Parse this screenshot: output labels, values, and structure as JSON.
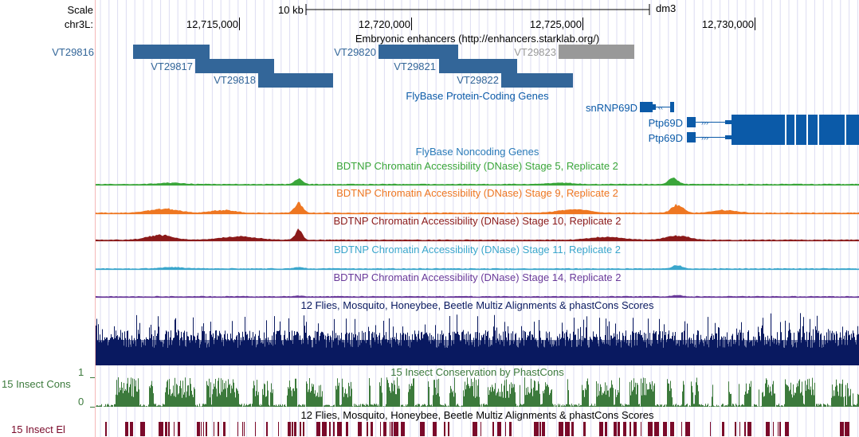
{
  "ruler": {
    "scale_label": "Scale",
    "scale_bar_label": "10 kb",
    "assembly": "dm3",
    "chrom_label": "chr3L:",
    "positions": [
      "12,715,000",
      "12,720,000",
      "12,725,000",
      "12,730,000"
    ]
  },
  "tracks": {
    "enhancers": {
      "title": "Embryonic enhancers (http://enhancers.starklab.org/)",
      "color": "#336699",
      "grey_color": "#999999",
      "items": [
        {
          "name": "VT29816"
        },
        {
          "name": "VT29817"
        },
        {
          "name": "VT29818"
        },
        {
          "name": "VT29820"
        },
        {
          "name": "VT29821"
        },
        {
          "name": "VT29822"
        },
        {
          "name": "VT29823"
        }
      ]
    },
    "coding_genes": {
      "title": "FlyBase Protein-Coding Genes",
      "color": "#0b5aa8",
      "genes": [
        {
          "name": "snRNP69D"
        },
        {
          "name": "Ptp69D"
        },
        {
          "name": "Ptp69D"
        }
      ]
    },
    "noncoding_genes": {
      "title": "FlyBase Noncoding Genes",
      "color": "#2a7ab8"
    },
    "dnase": [
      {
        "title": "BDTNP Chromatin Accessibility (DNase) Stage 5, Replicate 2",
        "color": "#3aa63a"
      },
      {
        "title": "BDTNP Chromatin Accessibility (DNase) Stage 9, Replicate 2",
        "color": "#ee7722"
      },
      {
        "title": "BDTNP Chromatin Accessibility (DNase) Stage 10, Replicate 2",
        "color": "#8b1a1a"
      },
      {
        "title": "BDTNP Chromatin Accessibility (DNase) Stage 11, Replicate 2",
        "color": "#3aa6cc"
      },
      {
        "title": "BDTNP Chromatin Accessibility (DNase) Stage 14, Replicate 2",
        "color": "#6a3a9a"
      }
    ],
    "multiz": {
      "title": "12 Flies, Mosquito, Honeybee, Beetle Multiz Alignments & phastCons Scores",
      "color": "#0a1a60"
    },
    "phastcons": {
      "title": "15 Insect Conservation by PhastCons",
      "side_label": "15 Insect Cons",
      "axis_top": "1",
      "axis_bottom": "0",
      "color": "#3c7a3c"
    },
    "elements": {
      "title": "12 Flies, Mosquito, Honeybee, Beetle Multiz Alignments & phastCons Scores",
      "side_label": "15 Insect El",
      "color": "#7a0a2a"
    }
  }
}
